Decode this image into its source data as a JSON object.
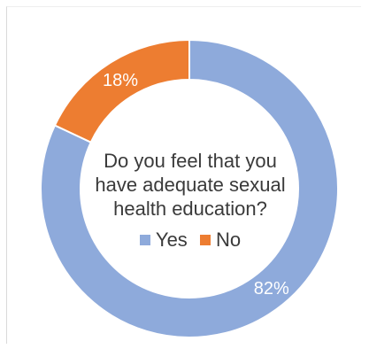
{
  "chart_data": {
    "type": "pie",
    "variant": "donut",
    "title": "Do you feel that you have adequate sexual health education?",
    "title_lines": [
      "Do you feel that you",
      "have adequate sexual",
      "health education?"
    ],
    "categories": [
      "Yes",
      "No"
    ],
    "values": [
      82,
      18
    ],
    "data_labels": [
      "82%",
      "18%"
    ],
    "colors": [
      "#8eaadb",
      "#ed7d31"
    ],
    "legend_position": "center"
  }
}
